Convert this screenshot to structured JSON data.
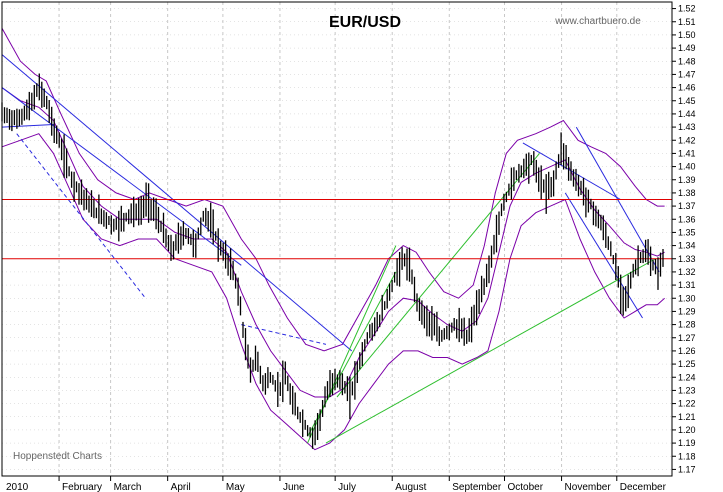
{
  "chart_data": {
    "type": "candlestick",
    "title": "EUR/USD",
    "watermark": "www.chartbuero.de",
    "source_note": "Hoppenstedt Charts",
    "year_label": "2010",
    "x_labels": [
      "February",
      "March",
      "April",
      "May",
      "June",
      "July",
      "August",
      "September",
      "October",
      "November",
      "December"
    ],
    "y_ticks": [
      1.17,
      1.18,
      1.19,
      1.2,
      1.21,
      1.22,
      1.23,
      1.24,
      1.25,
      1.26,
      1.27,
      1.28,
      1.29,
      1.3,
      1.31,
      1.32,
      1.33,
      1.34,
      1.35,
      1.36,
      1.37,
      1.38,
      1.39,
      1.4,
      1.41,
      1.42,
      1.43,
      1.44,
      1.45,
      1.46,
      1.47,
      1.48,
      1.49,
      1.5,
      1.51,
      1.52
    ],
    "ylim": [
      1.165,
      1.525
    ],
    "x_range_days": [
      0,
      364
    ],
    "grid": true,
    "colors": {
      "price": "#000000",
      "bollinger": "#7b00a8",
      "trend_blue": "#2a2adf",
      "trend_green": "#2fbf2f",
      "horizontal_red": "#e00000",
      "grid": "#c8c8c8"
    },
    "horizontal_lines": [
      1.375,
      1.33
    ],
    "price_path": [
      [
        0,
        1.44
      ],
      [
        8,
        1.435
      ],
      [
        15,
        1.445
      ],
      [
        20,
        1.46
      ],
      [
        24,
        1.45
      ],
      [
        28,
        1.43
      ],
      [
        32,
        1.415
      ],
      [
        38,
        1.39
      ],
      [
        43,
        1.38
      ],
      [
        48,
        1.37
      ],
      [
        52,
        1.365
      ],
      [
        57,
        1.36
      ],
      [
        61,
        1.355
      ],
      [
        66,
        1.36
      ],
      [
        70,
        1.365
      ],
      [
        75,
        1.365
      ],
      [
        79,
        1.375
      ],
      [
        83,
        1.365
      ],
      [
        88,
        1.35
      ],
      [
        92,
        1.335
      ],
      [
        96,
        1.345
      ],
      [
        100,
        1.35
      ],
      [
        105,
        1.34
      ],
      [
        110,
        1.365
      ],
      [
        114,
        1.355
      ],
      [
        118,
        1.34
      ],
      [
        122,
        1.33
      ],
      [
        126,
        1.32
      ],
      [
        129,
        1.3
      ],
      [
        132,
        1.265
      ],
      [
        135,
        1.245
      ],
      [
        138,
        1.255
      ],
      [
        142,
        1.235
      ],
      [
        146,
        1.24
      ],
      [
        150,
        1.23
      ],
      [
        154,
        1.24
      ],
      [
        158,
        1.22
      ],
      [
        162,
        1.21
      ],
      [
        166,
        1.2
      ],
      [
        169,
        1.195
      ],
      [
        173,
        1.21
      ],
      [
        177,
        1.23
      ],
      [
        181,
        1.24
      ],
      [
        185,
        1.235
      ],
      [
        189,
        1.225
      ],
      [
        192,
        1.24
      ],
      [
        196,
        1.26
      ],
      [
        200,
        1.275
      ],
      [
        204,
        1.28
      ],
      [
        208,
        1.295
      ],
      [
        212,
        1.31
      ],
      [
        216,
        1.325
      ],
      [
        219,
        1.33
      ],
      [
        222,
        1.32
      ],
      [
        226,
        1.295
      ],
      [
        230,
        1.285
      ],
      [
        234,
        1.28
      ],
      [
        238,
        1.27
      ],
      [
        242,
        1.275
      ],
      [
        246,
        1.28
      ],
      [
        250,
        1.275
      ],
      [
        253,
        1.27
      ],
      [
        256,
        1.285
      ],
      [
        260,
        1.3
      ],
      [
        264,
        1.32
      ],
      [
        268,
        1.345
      ],
      [
        272,
        1.37
      ],
      [
        276,
        1.385
      ],
      [
        280,
        1.395
      ],
      [
        284,
        1.4
      ],
      [
        288,
        1.405
      ],
      [
        292,
        1.39
      ],
      [
        296,
        1.38
      ],
      [
        300,
        1.39
      ],
      [
        304,
        1.415
      ],
      [
        308,
        1.4
      ],
      [
        311,
        1.39
      ],
      [
        314,
        1.385
      ],
      [
        318,
        1.375
      ],
      [
        322,
        1.365
      ],
      [
        326,
        1.355
      ],
      [
        330,
        1.34
      ],
      [
        334,
        1.32
      ],
      [
        337,
        1.3
      ],
      [
        340,
        1.305
      ],
      [
        343,
        1.32
      ],
      [
        346,
        1.33
      ],
      [
        350,
        1.335
      ],
      [
        353,
        1.325
      ],
      [
        357,
        1.32
      ],
      [
        360,
        1.335
      ]
    ],
    "bollinger_upper": [
      [
        0,
        1.505
      ],
      [
        10,
        1.48
      ],
      [
        18,
        1.47
      ],
      [
        24,
        1.465
      ],
      [
        32,
        1.44
      ],
      [
        42,
        1.41
      ],
      [
        52,
        1.39
      ],
      [
        62,
        1.38
      ],
      [
        72,
        1.375
      ],
      [
        80,
        1.38
      ],
      [
        90,
        1.375
      ],
      [
        100,
        1.37
      ],
      [
        110,
        1.375
      ],
      [
        120,
        1.37
      ],
      [
        130,
        1.345
      ],
      [
        138,
        1.33
      ],
      [
        145,
        1.31
      ],
      [
        155,
        1.285
      ],
      [
        165,
        1.265
      ],
      [
        175,
        1.26
      ],
      [
        185,
        1.265
      ],
      [
        195,
        1.29
      ],
      [
        203,
        1.31
      ],
      [
        210,
        1.33
      ],
      [
        218,
        1.34
      ],
      [
        225,
        1.335
      ],
      [
        232,
        1.32
      ],
      [
        240,
        1.305
      ],
      [
        248,
        1.3
      ],
      [
        256,
        1.31
      ],
      [
        262,
        1.34
      ],
      [
        268,
        1.38
      ],
      [
        274,
        1.41
      ],
      [
        280,
        1.42
      ],
      [
        290,
        1.425
      ],
      [
        298,
        1.43
      ],
      [
        305,
        1.435
      ],
      [
        313,
        1.42
      ],
      [
        320,
        1.415
      ],
      [
        328,
        1.41
      ],
      [
        336,
        1.4
      ],
      [
        344,
        1.385
      ],
      [
        350,
        1.375
      ],
      [
        356,
        1.37
      ],
      [
        360,
        1.37
      ]
    ],
    "bollinger_lower": [
      [
        0,
        1.415
      ],
      [
        10,
        1.42
      ],
      [
        20,
        1.425
      ],
      [
        28,
        1.41
      ],
      [
        36,
        1.385
      ],
      [
        44,
        1.36
      ],
      [
        54,
        1.345
      ],
      [
        64,
        1.34
      ],
      [
        74,
        1.345
      ],
      [
        84,
        1.345
      ],
      [
        94,
        1.33
      ],
      [
        104,
        1.325
      ],
      [
        114,
        1.32
      ],
      [
        122,
        1.3
      ],
      [
        130,
        1.265
      ],
      [
        138,
        1.235
      ],
      [
        146,
        1.215
      ],
      [
        154,
        1.205
      ],
      [
        162,
        1.195
      ],
      [
        170,
        1.185
      ],
      [
        178,
        1.19
      ],
      [
        186,
        1.2
      ],
      [
        194,
        1.22
      ],
      [
        202,
        1.235
      ],
      [
        210,
        1.25
      ],
      [
        218,
        1.26
      ],
      [
        226,
        1.26
      ],
      [
        234,
        1.255
      ],
      [
        242,
        1.255
      ],
      [
        250,
        1.25
      ],
      [
        258,
        1.255
      ],
      [
        264,
        1.26
      ],
      [
        270,
        1.29
      ],
      [
        276,
        1.33
      ],
      [
        282,
        1.355
      ],
      [
        290,
        1.365
      ],
      [
        298,
        1.37
      ],
      [
        306,
        1.375
      ],
      [
        314,
        1.345
      ],
      [
        322,
        1.32
      ],
      [
        330,
        1.3
      ],
      [
        338,
        1.285
      ],
      [
        344,
        1.29
      ],
      [
        350,
        1.295
      ],
      [
        356,
        1.295
      ],
      [
        360,
        1.3
      ]
    ],
    "bollinger_mid": [
      [
        0,
        1.46
      ],
      [
        10,
        1.45
      ],
      [
        20,
        1.445
      ],
      [
        28,
        1.435
      ],
      [
        36,
        1.41
      ],
      [
        44,
        1.385
      ],
      [
        54,
        1.37
      ],
      [
        64,
        1.36
      ],
      [
        74,
        1.36
      ],
      [
        84,
        1.36
      ],
      [
        94,
        1.35
      ],
      [
        104,
        1.345
      ],
      [
        114,
        1.345
      ],
      [
        122,
        1.335
      ],
      [
        130,
        1.305
      ],
      [
        138,
        1.28
      ],
      [
        146,
        1.26
      ],
      [
        154,
        1.245
      ],
      [
        162,
        1.23
      ],
      [
        170,
        1.225
      ],
      [
        178,
        1.225
      ],
      [
        186,
        1.232
      ],
      [
        194,
        1.255
      ],
      [
        202,
        1.272
      ],
      [
        210,
        1.29
      ],
      [
        218,
        1.3
      ],
      [
        226,
        1.298
      ],
      [
        234,
        1.288
      ],
      [
        242,
        1.28
      ],
      [
        250,
        1.275
      ],
      [
        258,
        1.283
      ],
      [
        264,
        1.3
      ],
      [
        270,
        1.335
      ],
      [
        276,
        1.37
      ],
      [
        282,
        1.388
      ],
      [
        290,
        1.395
      ],
      [
        298,
        1.4
      ],
      [
        306,
        1.405
      ],
      [
        314,
        1.383
      ],
      [
        322,
        1.367
      ],
      [
        330,
        1.355
      ],
      [
        338,
        1.342
      ],
      [
        344,
        1.337
      ],
      [
        350,
        1.335
      ],
      [
        356,
        1.332
      ],
      [
        360,
        1.335
      ]
    ],
    "trend_lines": [
      {
        "color": "blue",
        "dashed": false,
        "from": [
          0,
          1.485
        ],
        "to": [
          190,
          1.26
        ]
      },
      {
        "color": "blue",
        "dashed": false,
        "from": [
          0,
          1.46
        ],
        "to": [
          130,
          1.325
        ]
      },
      {
        "color": "blue",
        "dashed": false,
        "from": [
          0,
          1.43
        ],
        "to": [
          28,
          1.432
        ]
      },
      {
        "color": "blue",
        "dashed": true,
        "from": [
          8,
          1.425
        ],
        "to": [
          78,
          1.3
        ]
      },
      {
        "color": "blue",
        "dashed": true,
        "from": [
          130,
          1.28
        ],
        "to": [
          176,
          1.265
        ]
      },
      {
        "color": "blue",
        "dashed": false,
        "from": [
          283,
          1.418
        ],
        "to": [
          336,
          1.375
        ]
      },
      {
        "color": "blue",
        "dashed": false,
        "from": [
          312,
          1.43
        ],
        "to": [
          357,
          1.32
        ]
      },
      {
        "color": "blue",
        "dashed": false,
        "from": [
          306,
          1.38
        ],
        "to": [
          348,
          1.285
        ]
      },
      {
        "color": "green",
        "dashed": false,
        "from": [
          166,
          1.19
        ],
        "to": [
          214,
          1.34
        ]
      },
      {
        "color": "green",
        "dashed": false,
        "from": [
          166,
          1.195
        ],
        "to": [
          214,
          1.32
        ]
      },
      {
        "color": "green",
        "dashed": false,
        "from": [
          182,
          1.225
        ],
        "to": [
          292,
          1.41
        ]
      },
      {
        "color": "green",
        "dashed": false,
        "from": [
          176,
          1.19
        ],
        "to": [
          355,
          1.33
        ]
      }
    ]
  }
}
